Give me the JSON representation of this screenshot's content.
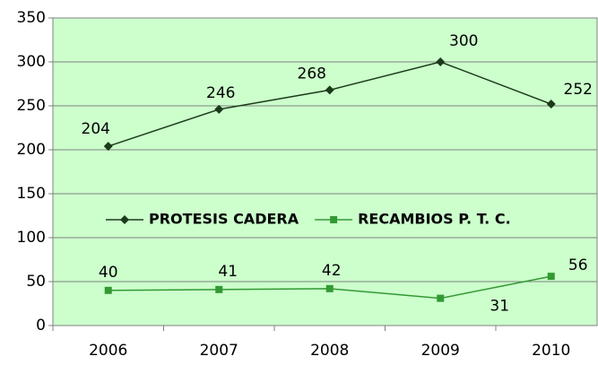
{
  "chart_data": {
    "type": "line",
    "categories": [
      "2006",
      "2007",
      "2008",
      "2009",
      "2010"
    ],
    "series": [
      {
        "name": "PROTESIS CADERA",
        "color": "#1a3a1a",
        "marker": "diamond",
        "values": [
          204,
          246,
          268,
          300,
          252
        ]
      },
      {
        "name": "RECAMBIOS P. T. C.",
        "color": "#339933",
        "marker": "square",
        "values": [
          40,
          41,
          42,
          31,
          56
        ]
      }
    ],
    "ylim": [
      0,
      350
    ],
    "yticks": [
      0,
      50,
      100,
      150,
      200,
      250,
      300,
      350
    ],
    "grid": true,
    "background": "#ccffcc",
    "legend": "center"
  }
}
